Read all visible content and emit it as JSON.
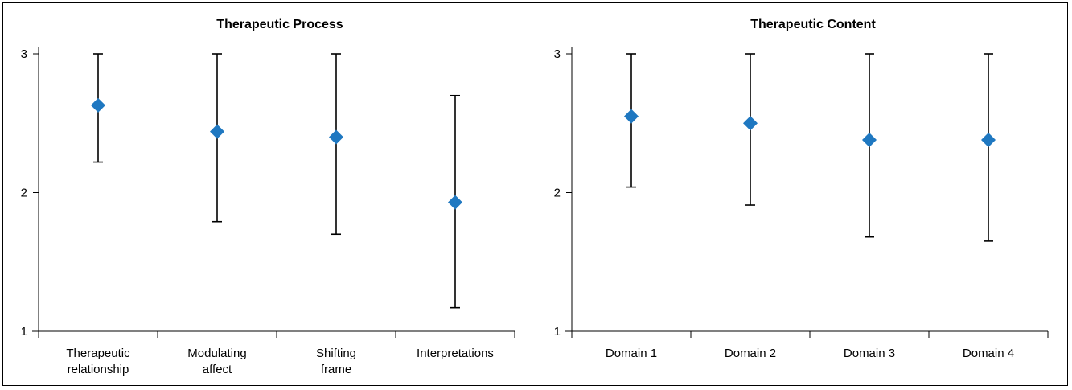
{
  "chart_data": [
    {
      "type": "scatter",
      "title": "Therapeutic Process",
      "categories": [
        [
          "Therapeutic",
          "relationship"
        ],
        [
          "Modulating",
          "affect"
        ],
        [
          "Shifting",
          "frame"
        ],
        [
          "Interpretations"
        ]
      ],
      "series": [
        {
          "values": [
            2.63,
            2.44,
            2.4,
            1.93
          ],
          "lower": [
            2.22,
            1.79,
            1.7,
            1.17
          ],
          "upper": [
            3.0,
            3.0,
            3.0,
            2.7
          ]
        }
      ],
      "ylim": [
        1,
        3
      ],
      "yticks": [
        "1",
        "2",
        "3"
      ],
      "xlabel": "",
      "ylabel": "",
      "grid": false,
      "marker": "diamond",
      "marker_color": "#1f78c1"
    },
    {
      "type": "scatter",
      "title": "Therapeutic Content",
      "categories": [
        [
          "Domain 1"
        ],
        [
          "Domain 2"
        ],
        [
          "Domain 3"
        ],
        [
          "Domain 4"
        ]
      ],
      "series": [
        {
          "values": [
            2.55,
            2.5,
            2.38,
            2.38
          ],
          "lower": [
            2.04,
            1.91,
            1.68,
            1.65
          ],
          "upper": [
            3.0,
            3.0,
            3.0,
            3.0
          ]
        }
      ],
      "ylim": [
        1,
        3
      ],
      "yticks": [
        "1",
        "2",
        "3"
      ],
      "xlabel": "",
      "ylabel": "",
      "grid": false,
      "marker": "diamond",
      "marker_color": "#1f78c1"
    }
  ]
}
